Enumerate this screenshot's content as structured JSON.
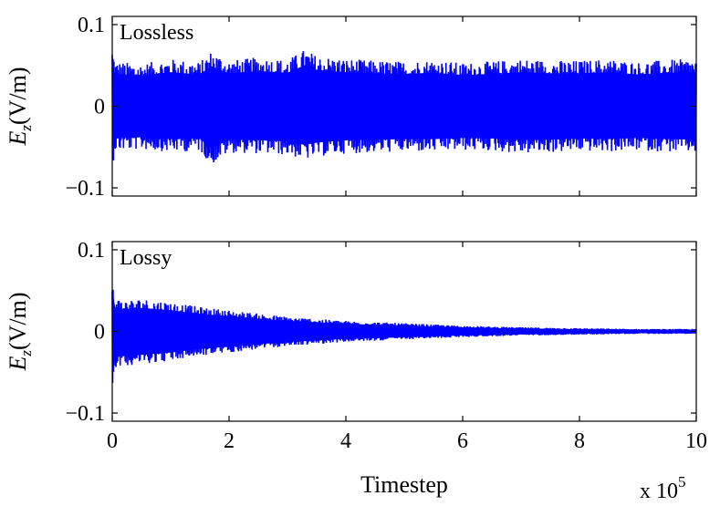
{
  "chart_data": [
    {
      "type": "line",
      "panel_label": "Lossless",
      "ylabel": "E_z(V/m)",
      "ylabel_main": "E",
      "ylabel_sub": "z",
      "ylabel_unit": "(V/m)",
      "xlim": [
        0,
        1000000
      ],
      "ylim": [
        -0.11,
        0.11
      ],
      "yticks": [
        -0.1,
        0,
        0.1
      ],
      "ytick_labels": [
        "−0.1",
        "0",
        "0.1"
      ],
      "xticks": [
        0,
        200000,
        400000,
        600000,
        800000,
        1000000
      ],
      "color": "#0000ff",
      "envelope": {
        "x": [
          0,
          5000,
          50000,
          100000,
          150000,
          170000,
          200000,
          250000,
          300000,
          330000,
          350000,
          400000,
          450000,
          500000,
          550000,
          600000,
          650000,
          700000,
          750000,
          800000,
          850000,
          900000,
          950000,
          1000000
        ],
        "upper": [
          0.075,
          0.055,
          0.052,
          0.058,
          0.054,
          0.068,
          0.056,
          0.06,
          0.057,
          0.07,
          0.062,
          0.058,
          0.056,
          0.055,
          0.057,
          0.053,
          0.055,
          0.058,
          0.056,
          0.056,
          0.058,
          0.054,
          0.057,
          0.058
        ],
        "lower": [
          -0.075,
          -0.055,
          -0.053,
          -0.056,
          -0.055,
          -0.072,
          -0.057,
          -0.058,
          -0.06,
          -0.066,
          -0.062,
          -0.058,
          -0.057,
          -0.056,
          -0.056,
          -0.054,
          -0.055,
          -0.058,
          -0.057,
          -0.055,
          -0.056,
          -0.054,
          -0.056,
          -0.057
        ]
      }
    },
    {
      "type": "line",
      "panel_label": "Lossy",
      "ylabel": "E_z(V/m)",
      "ylabel_main": "E",
      "ylabel_sub": "z",
      "ylabel_unit": "(V/m)",
      "xlim": [
        0,
        1000000
      ],
      "ylim": [
        -0.11,
        0.11
      ],
      "yticks": [
        -0.1,
        0,
        0.1
      ],
      "ytick_labels": [
        "−0.1",
        "0",
        "0.1"
      ],
      "xticks": [
        0,
        200000,
        400000,
        600000,
        800000,
        1000000
      ],
      "xtick_labels": [
        "0",
        "2",
        "4",
        "6",
        "8",
        "10"
      ],
      "xlabel": "Timestep",
      "x_multiplier_base": "x 10",
      "x_multiplier_exp": "5",
      "color": "#0000ff",
      "envelope": {
        "x": [
          0,
          3000,
          20000,
          50000,
          100000,
          150000,
          200000,
          300000,
          400000,
          500000,
          600000,
          700000,
          800000,
          900000,
          1000000
        ],
        "upper": [
          0.072,
          0.042,
          0.038,
          0.04,
          0.036,
          0.03,
          0.026,
          0.018,
          0.013,
          0.01,
          0.007,
          0.005,
          0.004,
          0.003,
          0.003
        ],
        "lower": [
          -0.078,
          -0.044,
          -0.042,
          -0.04,
          -0.036,
          -0.03,
          -0.026,
          -0.018,
          -0.013,
          -0.01,
          -0.007,
          -0.005,
          -0.004,
          -0.003,
          -0.003
        ]
      }
    }
  ]
}
